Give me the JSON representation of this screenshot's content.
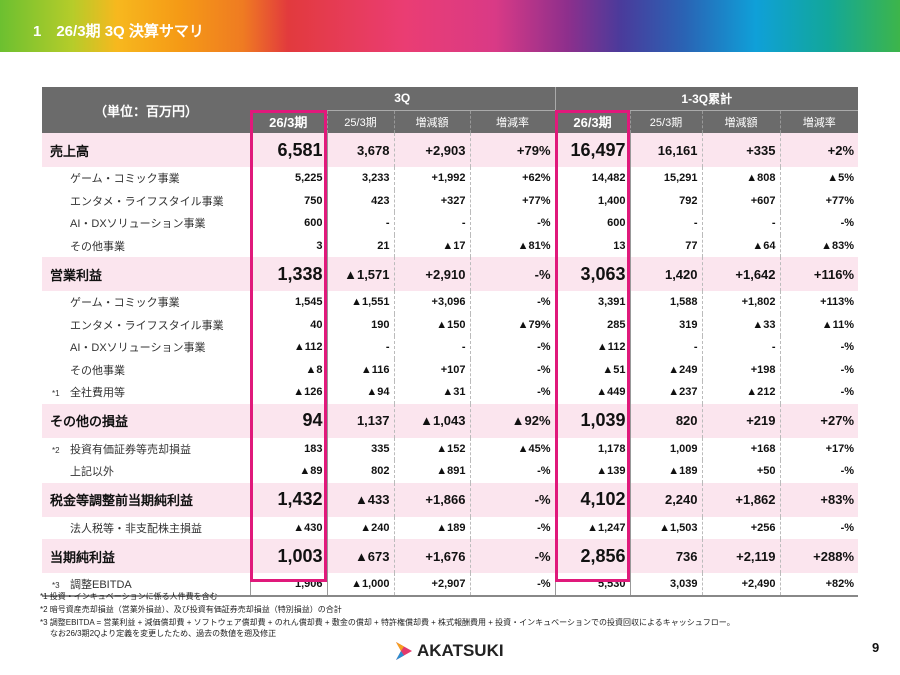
{
  "header": {
    "title": "1　26/3期 3Q 決算サマリ"
  },
  "table": {
    "unit_label": "（単位：百万円）",
    "groups": [
      "3Q",
      "1-3Q累計"
    ],
    "columns": [
      "26/3期",
      "25/3期",
      "増減額",
      "増減率",
      "26/3期",
      "25/3期",
      "増減額",
      "増減率"
    ],
    "rows": [
      {
        "type": "major",
        "label": "売上高",
        "values": [
          "6,581",
          "3,678",
          "+2,903",
          "+79%",
          "16,497",
          "16,161",
          "+335",
          "+2%"
        ]
      },
      {
        "type": "minor",
        "label": "ゲーム・コミック事業",
        "values": [
          "5,225",
          "3,233",
          "+1,992",
          "+62%",
          "14,482",
          "15,291",
          "▲808",
          "▲5%"
        ]
      },
      {
        "type": "minor",
        "label": "エンタメ・ライフスタイル事業",
        "values": [
          "750",
          "423",
          "+327",
          "+77%",
          "1,400",
          "792",
          "+607",
          "+77%"
        ]
      },
      {
        "type": "minor",
        "label": "AI・DXソリューション事業",
        "values": [
          "600",
          "-",
          "-",
          "-%",
          "600",
          "-",
          "-",
          "-%"
        ]
      },
      {
        "type": "minor",
        "label": "その他事業",
        "values": [
          "3",
          "21",
          "▲17",
          "▲81%",
          "13",
          "77",
          "▲64",
          "▲83%"
        ]
      },
      {
        "type": "major",
        "label": "営業利益",
        "values": [
          "1,338",
          "▲1,571",
          "+2,910",
          "-%",
          "3,063",
          "1,420",
          "+1,642",
          "+116%"
        ]
      },
      {
        "type": "minor",
        "label": "ゲーム・コミック事業",
        "values": [
          "1,545",
          "▲1,551",
          "+3,096",
          "-%",
          "3,391",
          "1,588",
          "+1,802",
          "+113%"
        ]
      },
      {
        "type": "minor",
        "label": "エンタメ・ライフスタイル事業",
        "values": [
          "40",
          "190",
          "▲150",
          "▲79%",
          "285",
          "319",
          "▲33",
          "▲11%"
        ]
      },
      {
        "type": "minor",
        "label": "AI・DXソリューション事業",
        "values": [
          "▲112",
          "-",
          "-",
          "-%",
          "▲112",
          "-",
          "-",
          "-%"
        ]
      },
      {
        "type": "minor",
        "label": "その他事業",
        "values": [
          "▲8",
          "▲116",
          "+107",
          "-%",
          "▲51",
          "▲249",
          "+198",
          "-%"
        ]
      },
      {
        "type": "minor",
        "note": "*1",
        "label": "全社費用等",
        "values": [
          "▲126",
          "▲94",
          "▲31",
          "-%",
          "▲449",
          "▲237",
          "▲212",
          "-%"
        ]
      },
      {
        "type": "major",
        "label": "その他の損益",
        "values": [
          "94",
          "1,137",
          "▲1,043",
          "▲92%",
          "1,039",
          "820",
          "+219",
          "+27%"
        ]
      },
      {
        "type": "minor",
        "note": "*2",
        "label": "投資有価証券等売却損益",
        "values": [
          "183",
          "335",
          "▲152",
          "▲45%",
          "1,178",
          "1,009",
          "+168",
          "+17%"
        ]
      },
      {
        "type": "minor",
        "label": "上記以外",
        "values": [
          "▲89",
          "802",
          "▲891",
          "-%",
          "▲139",
          "▲189",
          "+50",
          "-%"
        ]
      },
      {
        "type": "major",
        "label": "税金等調整前当期純利益",
        "values": [
          "1,432",
          "▲433",
          "+1,866",
          "-%",
          "4,102",
          "2,240",
          "+1,862",
          "+83%"
        ]
      },
      {
        "type": "minor",
        "label": "法人税等・非支配株主損益",
        "values": [
          "▲430",
          "▲240",
          "▲189",
          "-%",
          "▲1,247",
          "▲1,503",
          "+256",
          "-%"
        ]
      },
      {
        "type": "major",
        "label": "当期純利益",
        "values": [
          "1,003",
          "▲673",
          "+1,676",
          "-%",
          "2,856",
          "736",
          "+2,119",
          "+288%"
        ]
      },
      {
        "type": "minor",
        "note": "*3",
        "label": "調整EBITDA",
        "values": [
          "1,906",
          "▲1,000",
          "+2,907",
          "-%",
          "5,530",
          "3,039",
          "+2,490",
          "+82%"
        ]
      }
    ]
  },
  "footnotes": [
    "*1 投資・インキュベーションに係る人件費を含む",
    "*2 暗号資産売却損益（営業外損益）、及び投資有価証券売却損益（特別損益）の合計",
    "*3 調整EBITDA = 営業利益 + 減価償却費 + ソフトウェア償却費 + のれん償却費 + 敷金の償却 + 特許権償却費 + 株式報酬費用 + 投資・インキュベーションでの投資回収によるキャッシュフロー。",
    "なお26/3期2Qより定義を変更したため、過去の数値を遡及修正"
  ],
  "footer": {
    "logo": "AKATSUKI",
    "page": "9"
  },
  "colors": {
    "accent": "#e0197b",
    "header_bg": "#6b6b6b",
    "major_row_bg": "#fbe5ee"
  }
}
